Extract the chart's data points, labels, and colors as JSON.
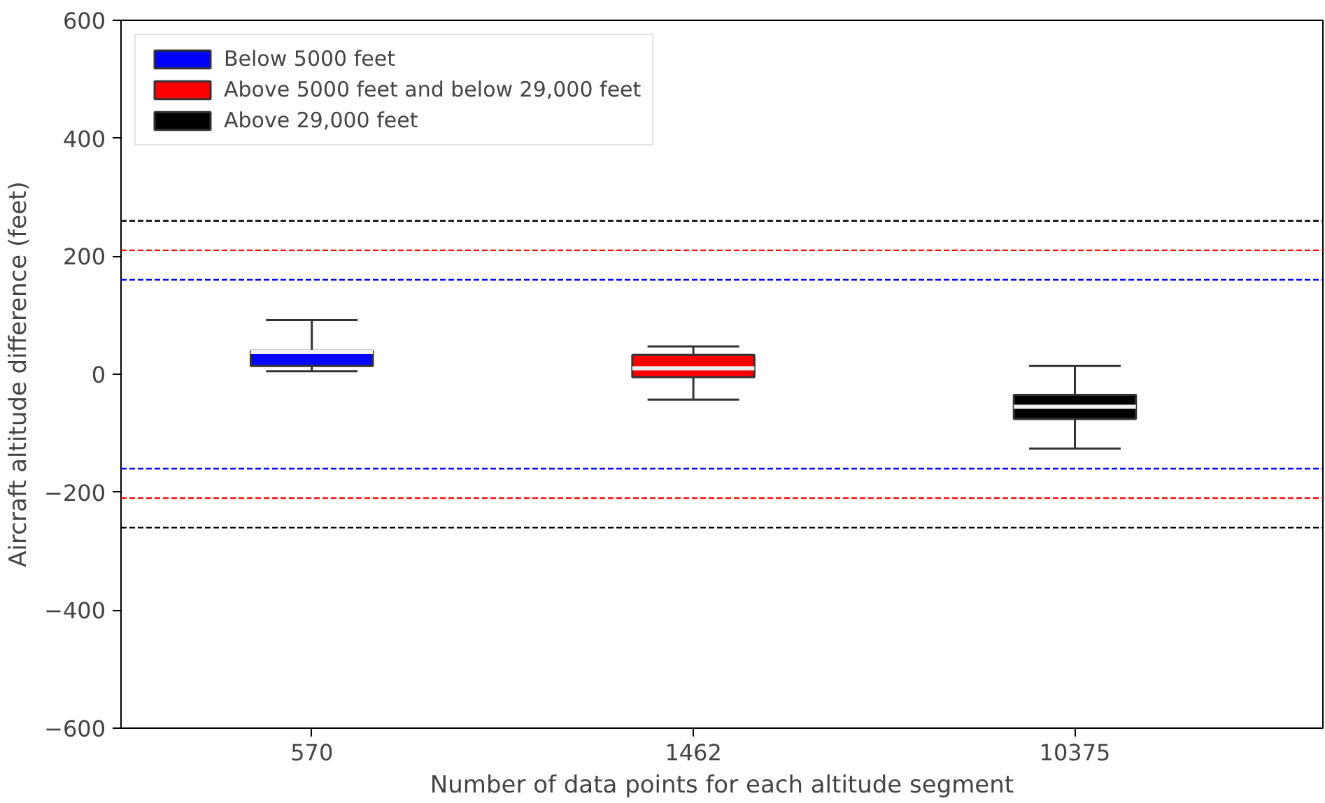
{
  "chart_data": {
    "type": "box",
    "xlabel": "Number of data points for each altitude segment",
    "ylabel": "Aircraft altitude difference (feet)",
    "categories": [
      "570",
      "1462",
      "10375"
    ],
    "series": [
      {
        "name": "Below 5000 feet",
        "color": "#0000ff",
        "boxes": [
          {
            "low": 5,
            "q1": 14,
            "median": 38,
            "q3": 40,
            "high": 92
          },
          null,
          null
        ]
      },
      {
        "name": "Above 5000 feet and below 29,000 feet",
        "color": "#ff0000",
        "boxes": [
          null,
          {
            "low": -43,
            "q1": -5,
            "median": 10,
            "q3": 33,
            "high": 47
          },
          null
        ]
      },
      {
        "name": "Above 29,000 feet",
        "color": "#000000",
        "boxes": [
          null,
          null,
          {
            "low": -126,
            "q1": -76,
            "median": -55,
            "q3": -35,
            "high": 14
          }
        ]
      }
    ],
    "ylim": [
      -600,
      600
    ],
    "yticks": [
      -600,
      -400,
      -200,
      0,
      200,
      400,
      600
    ],
    "ref_lines": [
      {
        "axis": "y",
        "value": 260,
        "color": "#000000",
        "line_style": "dashed"
      },
      {
        "axis": "y",
        "value": 210,
        "color": "#ff0000",
        "line_style": "dashed"
      },
      {
        "axis": "y",
        "value": 160,
        "color": "#0000ff",
        "line_style": "dashed"
      },
      {
        "axis": "y",
        "value": -160,
        "color": "#0000ff",
        "line_style": "dashed"
      },
      {
        "axis": "y",
        "value": -210,
        "color": "#ff0000",
        "line_style": "dashed"
      },
      {
        "axis": "y",
        "value": -260,
        "color": "#000000",
        "line_style": "dashed"
      }
    ],
    "grid": false,
    "legend": "top left"
  }
}
